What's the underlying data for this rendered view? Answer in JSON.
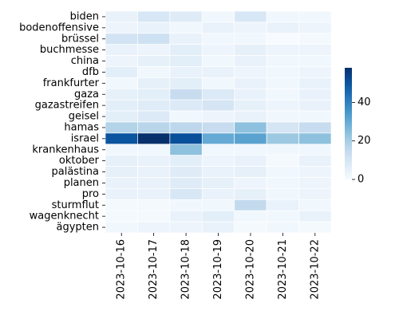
{
  "chart_data": {
    "type": "heatmap",
    "title": "",
    "xlabel": "",
    "ylabel": "",
    "x": [
      "2023-10-16",
      "2023-10-17",
      "2023-10-18",
      "2023-10-19",
      "2023-10-20",
      "2023-10-21",
      "2023-10-22"
    ],
    "y": [
      "biden",
      "bodenoffensive",
      "brüssel",
      "buchmesse",
      "china",
      "dfb",
      "frankfurter",
      "gaza",
      "gazastreifen",
      "geisel",
      "hamas",
      "israel",
      "krankenhaus",
      "oktober",
      "palästina",
      "planen",
      "pro",
      "sturmflut",
      "wagenknecht",
      "ägypten"
    ],
    "values": [
      [
        4,
        9,
        7,
        2,
        9,
        2,
        2
      ],
      [
        3,
        4,
        2,
        4,
        3,
        4,
        3
      ],
      [
        11,
        12,
        4,
        2,
        2,
        0,
        1
      ],
      [
        4,
        3,
        6,
        3,
        5,
        3,
        3
      ],
      [
        3,
        5,
        6,
        2,
        4,
        2,
        2
      ],
      [
        6,
        2,
        4,
        4,
        3,
        2,
        3
      ],
      [
        2,
        5,
        6,
        2,
        4,
        2,
        4
      ],
      [
        5,
        6,
        14,
        8,
        4,
        2,
        4
      ],
      [
        6,
        7,
        8,
        10,
        5,
        3,
        4
      ],
      [
        6,
        8,
        2,
        3,
        4,
        2,
        2
      ],
      [
        18,
        17,
        16,
        14,
        24,
        10,
        14
      ],
      [
        50,
        58,
        51,
        30,
        32,
        22,
        24
      ],
      [
        2,
        2,
        24,
        2,
        2,
        2,
        2
      ],
      [
        5,
        4,
        6,
        3,
        4,
        1,
        4
      ],
      [
        5,
        4,
        7,
        4,
        5,
        2,
        3
      ],
      [
        4,
        4,
        7,
        5,
        3,
        2,
        3
      ],
      [
        4,
        4,
        9,
        4,
        5,
        2,
        3
      ],
      [
        1,
        1,
        2,
        2,
        15,
        4,
        2
      ],
      [
        1,
        1,
        4,
        6,
        2,
        2,
        4
      ],
      [
        2,
        3,
        3,
        4,
        1,
        2,
        1
      ]
    ],
    "vmin": 0,
    "vmax": 58,
    "colorbar": {
      "ticks": [
        0,
        20,
        40
      ],
      "colormap": "Blues"
    },
    "grid": false
  },
  "colors": {
    "cmap_low": "#f7fbff",
    "cmap_mid": "#6baed6",
    "cmap_high": "#08306b"
  }
}
